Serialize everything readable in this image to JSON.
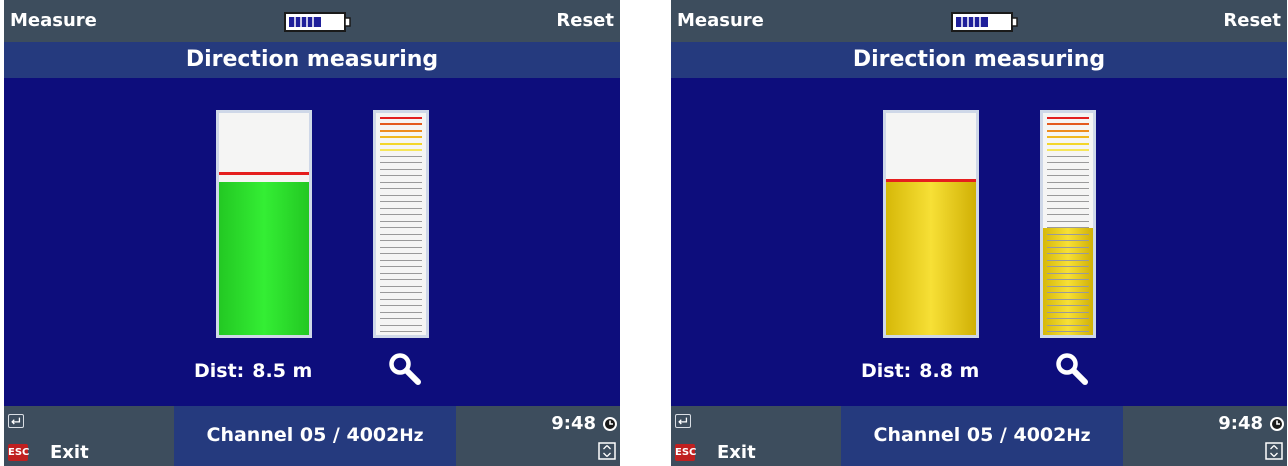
{
  "colors": {
    "bar": "#3d4d5d",
    "title_bar": "#253a7e",
    "panel": "#0d0d7c",
    "green": "#2fe02f",
    "yellow": "#f0d425",
    "red_line": "#e51e1e"
  },
  "screens": [
    {
      "topbar": {
        "left_label": "Measure",
        "right_label": "Reset",
        "battery_icon": "battery-icon"
      },
      "title": "Direction measuring",
      "signal_meter": {
        "color": "green",
        "level": 0.69,
        "reference_level": 0.72
      },
      "scale_meter": {
        "level": 0,
        "ticks": 34
      },
      "distance": {
        "label": "Dist:",
        "value": "8.5 m"
      },
      "zoom_icon": "magnifier-icon",
      "bottombar": {
        "enter_icon": "enter-key-icon",
        "esc_key": "ESC",
        "exit_label": "Exit",
        "channel": "Channel 05 /",
        "frequency": "4002",
        "unit": "Hz",
        "time": "9:48",
        "clock_icon": "clock-icon",
        "nav_icon": "nav-pad-icon"
      }
    },
    {
      "topbar": {
        "left_label": "Measure",
        "right_label": "Reset",
        "battery_icon": "battery-icon"
      },
      "title": "Direction measuring",
      "signal_meter": {
        "color": "yellow",
        "level": 0.69,
        "reference_level": 0.69
      },
      "scale_meter": {
        "level": 0.48,
        "ticks": 34
      },
      "distance": {
        "label": "Dist:",
        "value": "8.8 m"
      },
      "zoom_icon": "magnifier-icon",
      "bottombar": {
        "enter_icon": "enter-key-icon",
        "esc_key": "ESC",
        "exit_label": "Exit",
        "channel": "Channel 05 /",
        "frequency": "4002",
        "unit": "Hz",
        "time": "9:48",
        "clock_icon": "clock-icon",
        "nav_icon": "nav-pad-icon"
      }
    }
  ]
}
